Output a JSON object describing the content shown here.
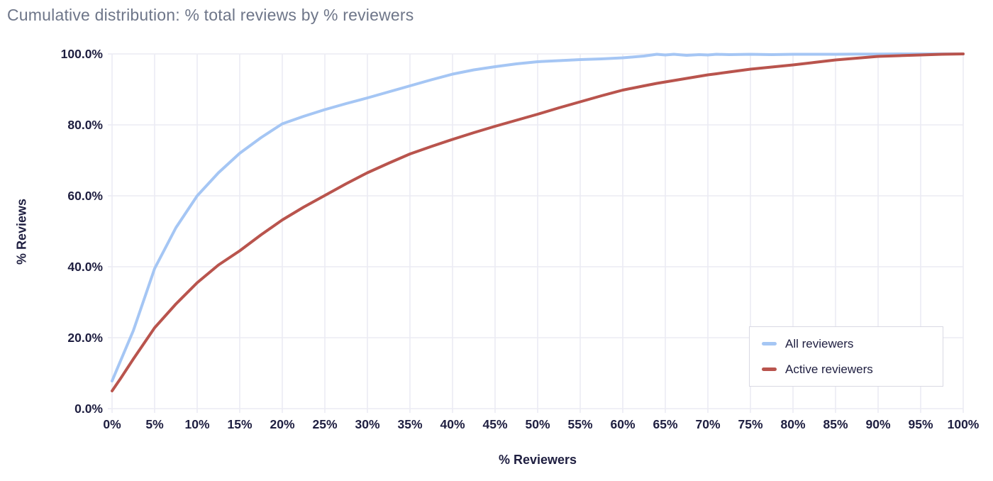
{
  "title": "Cumulative distribution: % total reviews by % reviewers",
  "colors": {
    "title_text": "#6e7689",
    "axis_text": "#1e1e40",
    "grid": "#ebebf3",
    "background": "#ffffff",
    "legend_border": "#d9d9e3",
    "all_reviewers_line": "#a5c6f4",
    "active_reviewers_line": "#b9544d"
  },
  "legend": {
    "items": [
      {
        "label": "All reviewers",
        "color": "#a5c6f4"
      },
      {
        "label": "Active reviewers",
        "color": "#b9544d"
      }
    ]
  },
  "chart_data": {
    "type": "line",
    "title": "Cumulative distribution: % total reviews by % reviewers",
    "xlabel": "% Reviewers",
    "ylabel": "% Reviews",
    "xlim": [
      0,
      100
    ],
    "ylim": [
      0,
      100
    ],
    "grid": true,
    "legend_position": "inside-bottom-right",
    "x_tick_values": [
      0,
      5,
      10,
      15,
      20,
      25,
      30,
      35,
      40,
      45,
      50,
      55,
      60,
      65,
      70,
      75,
      80,
      85,
      90,
      95,
      100
    ],
    "x_tick_labels": [
      "0%",
      "5%",
      "10%",
      "15%",
      "20%",
      "25%",
      "30%",
      "35%",
      "40%",
      "45%",
      "50%",
      "55%",
      "60%",
      "65%",
      "70%",
      "75%",
      "80%",
      "85%",
      "90%",
      "95%",
      "100%"
    ],
    "y_tick_values": [
      0,
      20,
      40,
      60,
      80,
      100
    ],
    "y_tick_labels": [
      "0.0%",
      "20.0%",
      "40.0%",
      "60.0%",
      "80.0%",
      "100.0%"
    ],
    "x": [
      0,
      1,
      2.5,
      5,
      7.5,
      10,
      12.5,
      15,
      17.5,
      20,
      22.5,
      25,
      27.5,
      30,
      32.5,
      35,
      37.5,
      40,
      42.5,
      45,
      47.5,
      50,
      52.5,
      55,
      57.5,
      60,
      62.5,
      64,
      65,
      66,
      67.5,
      69,
      70,
      71,
      72.5,
      75,
      77.5,
      80,
      82.5,
      85,
      87.5,
      90,
      92.5,
      95,
      97.5,
      100
    ],
    "series": [
      {
        "name": "All reviewers",
        "color": "#a5c6f4",
        "values": [
          7.8,
          13.5,
          22,
          39.5,
          51,
          60,
          66.5,
          72,
          76.4,
          80.3,
          82.4,
          84.3,
          86,
          87.6,
          89.3,
          91,
          92.7,
          94.3,
          95.5,
          96.4,
          97.2,
          97.8,
          98.1,
          98.4,
          98.6,
          98.9,
          99.4,
          99.9,
          99.7,
          99.9,
          99.6,
          99.8,
          99.7,
          99.9,
          99.8,
          99.9,
          99.8,
          99.9,
          99.9,
          99.9,
          99.95,
          99.95,
          100,
          100,
          100,
          100
        ]
      },
      {
        "name": "Active reviewers",
        "color": "#b9544d",
        "values": [
          5,
          8.5,
          14,
          22.8,
          29.5,
          35.5,
          40.5,
          44.5,
          49,
          53.2,
          56.8,
          60.1,
          63.4,
          66.5,
          69.2,
          71.8,
          73.9,
          75.9,
          77.8,
          79.6,
          81.3,
          83,
          84.8,
          86.5,
          88.2,
          89.8,
          91,
          91.7,
          92.1,
          92.5,
          93.1,
          93.7,
          94.1,
          94.4,
          94.9,
          95.7,
          96.3,
          96.9,
          97.6,
          98.3,
          98.8,
          99.3,
          99.5,
          99.7,
          99.9,
          100
        ]
      }
    ]
  }
}
